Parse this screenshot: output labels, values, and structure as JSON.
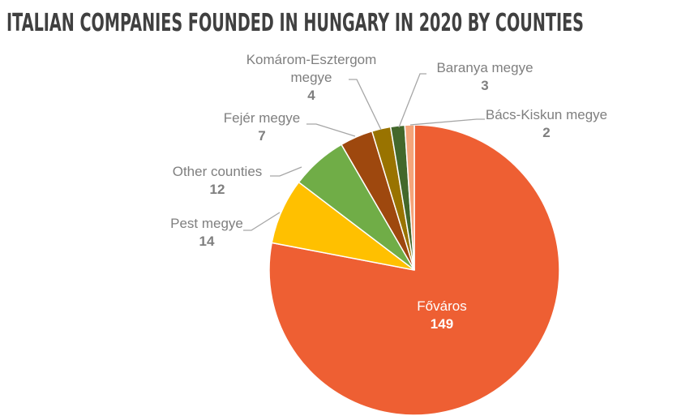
{
  "chart_data": {
    "type": "pie",
    "title": "ITALIAN COMPANIES FOUNDED IN HUNGARY IN 2020 BY COUNTIES",
    "categories": [
      "Főváros",
      "Pest megye",
      "Other counties",
      "Fejér megye",
      "Komárom-Esztergom megye",
      "Baranya megye",
      "Bács-Kiskun megye"
    ],
    "values": [
      149,
      14,
      12,
      7,
      4,
      3,
      2
    ],
    "colors": [
      "#ee5f33",
      "#ffc000",
      "#70ad47",
      "#9e480e",
      "#997300",
      "#43682b",
      "#f4a47a"
    ]
  }
}
